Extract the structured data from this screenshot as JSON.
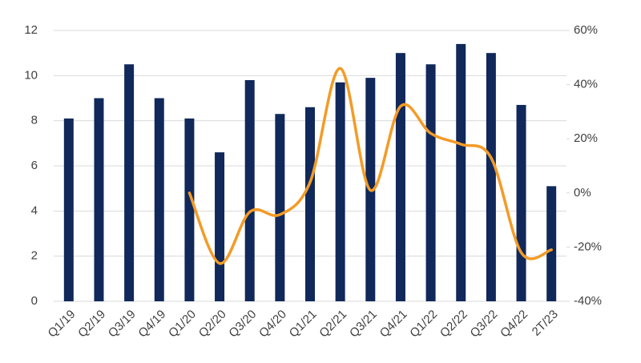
{
  "chart_data": {
    "type": "bar_line",
    "categories": [
      "Q1/19",
      "Q2/19",
      "Q3/19",
      "Q4/19",
      "Q1/20",
      "Q2/20",
      "Q3/20",
      "Q4/20",
      "Q1/21",
      "Q2/21",
      "Q3/21",
      "Q4/21",
      "Q1/22",
      "Q2/22",
      "Q3/22",
      "Q4/22",
      "2T/23"
    ],
    "series": [
      {
        "type": "bar",
        "color": "#10285a",
        "values": [
          8.1,
          9.0,
          10.5,
          9.0,
          8.1,
          6.6,
          9.8,
          8.3,
          8.6,
          9.7,
          9.9,
          11.0,
          10.5,
          11.4,
          11.0,
          8.7,
          5.1
        ]
      },
      {
        "type": "line",
        "axis": "y2",
        "color": "#f39b26",
        "values": [
          null,
          null,
          null,
          null,
          0,
          -26,
          -7,
          -8,
          4,
          46,
          1,
          32,
          22,
          18,
          13,
          -22,
          -21
        ]
      }
    ],
    "ylim": [
      0,
      12
    ],
    "yticks": [
      0,
      2,
      4,
      6,
      8,
      10,
      12
    ],
    "y2lim": [
      -40,
      60
    ],
    "y2ticks": [
      {
        "value": -40,
        "label": "-40%"
      },
      {
        "value": -20,
        "label": "-20%"
      },
      {
        "value": 0,
        "label": "0%"
      },
      {
        "value": 20,
        "label": "20%"
      },
      {
        "value": 40,
        "label": "40%"
      },
      {
        "value": 60,
        "label": "60%"
      }
    ],
    "grid": true
  }
}
